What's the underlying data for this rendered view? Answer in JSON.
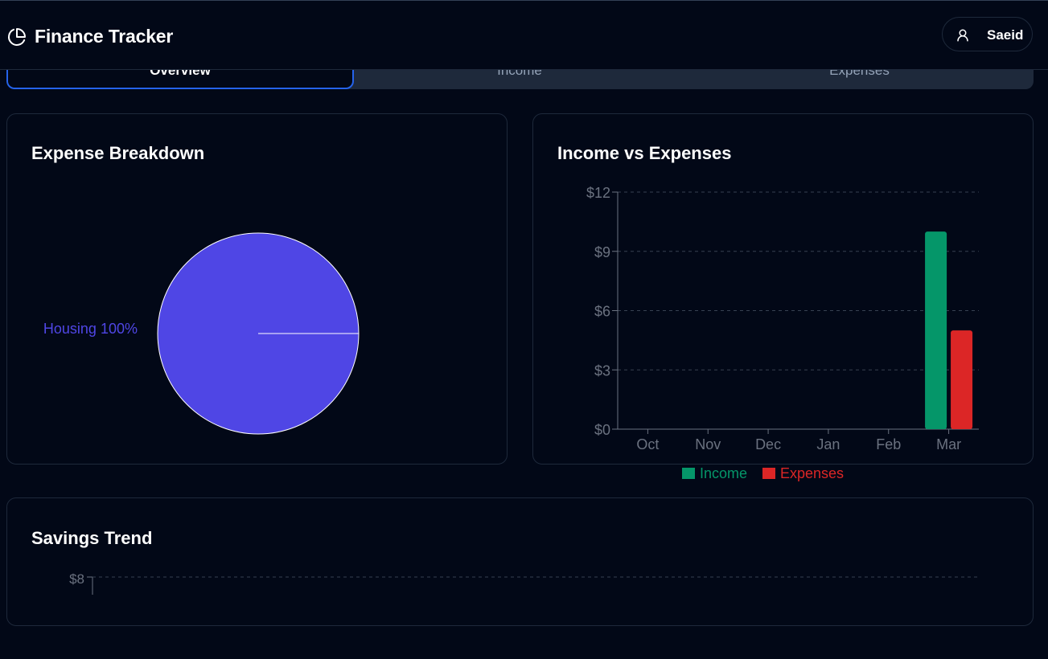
{
  "header": {
    "title": "Finance Tracker",
    "user": "Saeid"
  },
  "tabs": [
    {
      "label": "Overview",
      "active": true
    },
    {
      "label": "Income",
      "active": false
    },
    {
      "label": "Expenses",
      "active": false
    }
  ],
  "colors": {
    "accent": "#2563eb",
    "pie": "#4f46e5",
    "income": "#059669",
    "expenses": "#dc2626"
  },
  "cards": {
    "expense_breakdown": {
      "title": "Expense Breakdown"
    },
    "income_vs_expenses": {
      "title": "Income vs Expenses"
    },
    "savings_trend": {
      "title": "Savings Trend"
    }
  },
  "chart_data": [
    {
      "type": "pie",
      "title": "Expense Breakdown",
      "slices": [
        {
          "label": "Housing 100%",
          "name": "Housing",
          "value": 100
        }
      ]
    },
    {
      "type": "bar",
      "title": "Income vs Expenses",
      "categories": [
        "Oct",
        "Nov",
        "Dec",
        "Jan",
        "Feb",
        "Mar"
      ],
      "series": [
        {
          "name": "Income",
          "values": [
            0,
            0,
            0,
            0,
            0,
            10
          ]
        },
        {
          "name": "Expenses",
          "values": [
            0,
            0,
            0,
            0,
            0,
            5
          ]
        }
      ],
      "yticks": [
        "$0",
        "$3",
        "$6",
        "$9",
        "$12"
      ],
      "ylim": [
        0,
        12
      ],
      "grid": true,
      "legend": "bottom"
    },
    {
      "type": "line",
      "title": "Savings Trend",
      "yticks_visible": [
        "$8"
      ],
      "grid": true
    }
  ]
}
